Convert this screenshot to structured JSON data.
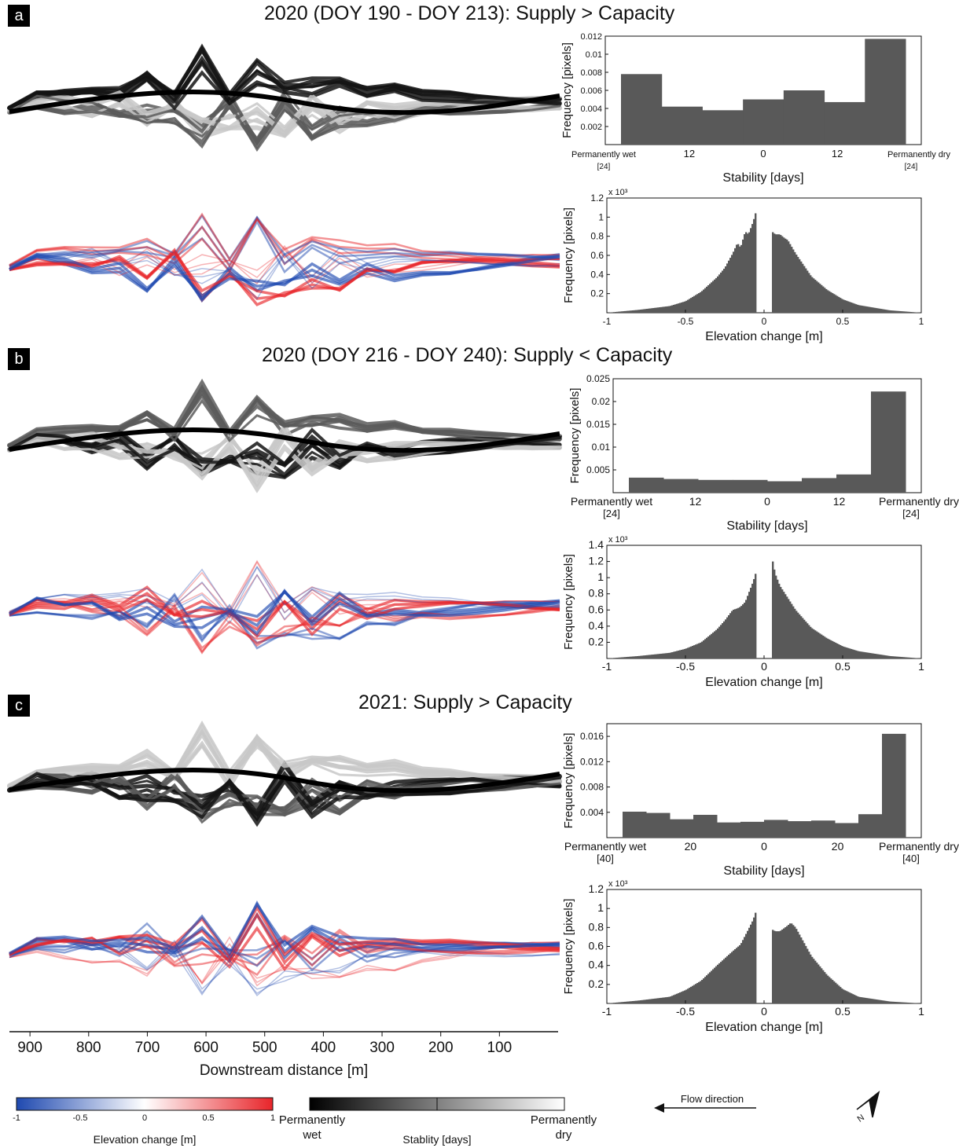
{
  "panels": [
    {
      "letter": "a",
      "title": "2020 (DOY 190 - DOY 213): Supply > Capacity",
      "stability_hist": {
        "type": "bar",
        "ylabel": "Frequency [pixels]",
        "xlabel": "Stability [days]",
        "ylim": [
          0,
          0.012
        ],
        "yticks": [
          "0.002",
          "0.004",
          "0.006",
          "0.008",
          "0.01",
          "0.012"
        ],
        "ytick_values": [
          0.002,
          0.004,
          0.006,
          0.008,
          0.01,
          0.012
        ],
        "xtick_labels": [
          "12",
          "0",
          "12"
        ],
        "left_end_label": "Permanently wet",
        "left_end_sub": "[24]",
        "right_end_label": "Permanently dry",
        "right_end_sub": "[24]",
        "values": [
          0.0078,
          0.0042,
          0.0038,
          0.005,
          0.006,
          0.0047,
          0.0117
        ]
      },
      "elevation_hist": {
        "type": "bar",
        "ylabel": "Frequency [pixels]",
        "xlabel": "Elevation change [m]",
        "multiplier": "x 10³",
        "ylim": [
          0,
          1.2
        ],
        "yticks": [
          "0.2",
          "0.4",
          "0.6",
          "0.8",
          "1",
          "1.2"
        ],
        "ytick_values": [
          0.2,
          0.4,
          0.6,
          0.8,
          1.0,
          1.2
        ],
        "xticks": [
          "-1",
          "-0.5",
          "0",
          "0.5",
          "1"
        ],
        "gap": [
          -0.05,
          0.05
        ],
        "profile_x": [
          -1.0,
          -0.8,
          -0.6,
          -0.5,
          -0.4,
          -0.3,
          -0.25,
          -0.2,
          -0.17,
          -0.15,
          -0.12,
          -0.1,
          -0.07,
          -0.05,
          0.05,
          0.07,
          0.1,
          0.13,
          0.15,
          0.2,
          0.3,
          0.4,
          0.5,
          0.6,
          0.8,
          1.0
        ],
        "profile_y": [
          0.0,
          0.03,
          0.07,
          0.12,
          0.22,
          0.37,
          0.47,
          0.62,
          0.73,
          0.68,
          0.85,
          0.82,
          0.95,
          1.07,
          0.85,
          0.82,
          0.82,
          0.78,
          0.76,
          0.62,
          0.38,
          0.24,
          0.14,
          0.08,
          0.025,
          0.0
        ]
      }
    },
    {
      "letter": "b",
      "title": "2020 (DOY 216 - DOY 240): Supply < Capacity",
      "stability_hist": {
        "type": "bar",
        "ylabel": "Frequency [pixels]",
        "xlabel": "Stability [days]",
        "ylim": [
          0,
          0.025
        ],
        "yticks": [
          "0.005",
          "0.01",
          "0.015",
          "0.02",
          "0.025"
        ],
        "ytick_values": [
          0.005,
          0.01,
          0.015,
          0.02,
          0.025
        ],
        "xtick_labels": [
          "12",
          "0",
          "12"
        ],
        "left_end_label": "Permanently wet",
        "left_end_sub": "[24]",
        "right_end_label": "Permanently dry",
        "right_end_sub": "[24]",
        "values": [
          0.0033,
          0.003,
          0.0028,
          0.0028,
          0.0025,
          0.0032,
          0.004,
          0.0222
        ]
      },
      "elevation_hist": {
        "type": "bar",
        "ylabel": "Frequency [pixels]",
        "xlabel": "Elevation change [m]",
        "multiplier": "x 10³",
        "ylim": [
          0,
          1.4
        ],
        "yticks": [
          "0.2",
          "0.4",
          "0.6",
          "0.8",
          "1",
          "1.2",
          "1.4"
        ],
        "ytick_values": [
          0.2,
          0.4,
          0.6,
          0.8,
          1.0,
          1.2,
          1.4
        ],
        "xticks": [
          "-1",
          "-0.5",
          "0",
          "0.5",
          "1"
        ],
        "gap": [
          -0.05,
          0.05
        ],
        "profile_x": [
          -1.0,
          -0.8,
          -0.6,
          -0.5,
          -0.4,
          -0.3,
          -0.25,
          -0.2,
          -0.17,
          -0.15,
          -0.12,
          -0.1,
          -0.07,
          -0.05,
          0.05,
          0.07,
          0.1,
          0.15,
          0.2,
          0.3,
          0.4,
          0.5,
          0.6,
          0.8,
          1.0
        ],
        "profile_y": [
          0.0,
          0.03,
          0.07,
          0.12,
          0.2,
          0.36,
          0.47,
          0.6,
          0.62,
          0.64,
          0.7,
          0.8,
          0.95,
          1.08,
          1.25,
          1.05,
          0.9,
          0.75,
          0.6,
          0.38,
          0.25,
          0.15,
          0.09,
          0.03,
          0.0
        ]
      }
    },
    {
      "letter": "c",
      "title": "2021: Supply > Capacity",
      "stability_hist": {
        "type": "bar",
        "ylabel": "Frequency [pixels]",
        "xlabel": "Stability [days]",
        "ylim": [
          0,
          0.018
        ],
        "yticks": [
          "0.004",
          "0.008",
          "0.012",
          "0.016"
        ],
        "ytick_values": [
          0.004,
          0.008,
          0.012,
          0.016
        ],
        "xtick_labels": [
          "20",
          "0",
          "20"
        ],
        "left_end_label": "Permanently wet",
        "left_end_sub": "[40]",
        "right_end_label": "Permanently dry",
        "right_end_sub": "[40]",
        "values": [
          0.0041,
          0.0039,
          0.0029,
          0.0036,
          0.0024,
          0.0025,
          0.0028,
          0.0026,
          0.0027,
          0.0023,
          0.0037,
          0.0164
        ]
      },
      "elevation_hist": {
        "type": "bar",
        "ylabel": "Frequency [pixels]",
        "xlabel": "Elevation change [m]",
        "multiplier": "x 10³",
        "ylim": [
          0,
          1.2
        ],
        "yticks": [
          "0.2",
          "0.4",
          "0.6",
          "0.8",
          "1",
          "1.2"
        ],
        "ytick_values": [
          0.2,
          0.4,
          0.6,
          0.8,
          1.0,
          1.2
        ],
        "xticks": [
          "-1",
          "-0.5",
          "0",
          "0.5",
          "1"
        ],
        "gap": [
          -0.05,
          0.05
        ],
        "profile_x": [
          -1.0,
          -0.8,
          -0.6,
          -0.5,
          -0.4,
          -0.3,
          -0.2,
          -0.15,
          -0.1,
          -0.07,
          -0.05,
          0.05,
          0.07,
          0.1,
          0.15,
          0.17,
          0.2,
          0.25,
          0.3,
          0.4,
          0.5,
          0.6,
          0.8,
          1.0
        ],
        "profile_y": [
          0.0,
          0.03,
          0.07,
          0.14,
          0.24,
          0.4,
          0.55,
          0.62,
          0.78,
          0.88,
          0.98,
          0.78,
          0.76,
          0.76,
          0.82,
          0.85,
          0.8,
          0.65,
          0.5,
          0.3,
          0.15,
          0.07,
          0.02,
          0.0
        ]
      }
    }
  ],
  "distance_axis": {
    "xlabel": "Downstream distance [m]",
    "ticks": [
      "900",
      "800",
      "700",
      "600",
      "500",
      "400",
      "300",
      "200",
      "100"
    ],
    "tick_values": [
      900,
      800,
      700,
      600,
      500,
      400,
      300,
      200,
      100
    ],
    "range": [
      935,
      0
    ]
  },
  "legend": {
    "elevation": {
      "label": "Elevation change [m]",
      "ticks": [
        "-1",
        "-0.5",
        "0",
        "0.5",
        "1"
      ],
      "low_color": "#1f49b0",
      "mid_color": "#ffffff",
      "high_color": "#e8252a"
    },
    "stability": {
      "label": "Stablity [days]",
      "left_label_1": "Permanently",
      "left_label_2": "wet",
      "right_label_1": "Permanently",
      "right_label_2": "dry"
    },
    "flow_direction": "Flow direction",
    "north_label": "N"
  },
  "colors": {
    "bar": "#595959",
    "wet": "#000000",
    "dry": "#ffffff",
    "erosion": "#1f49b0",
    "deposition": "#e8252a"
  }
}
